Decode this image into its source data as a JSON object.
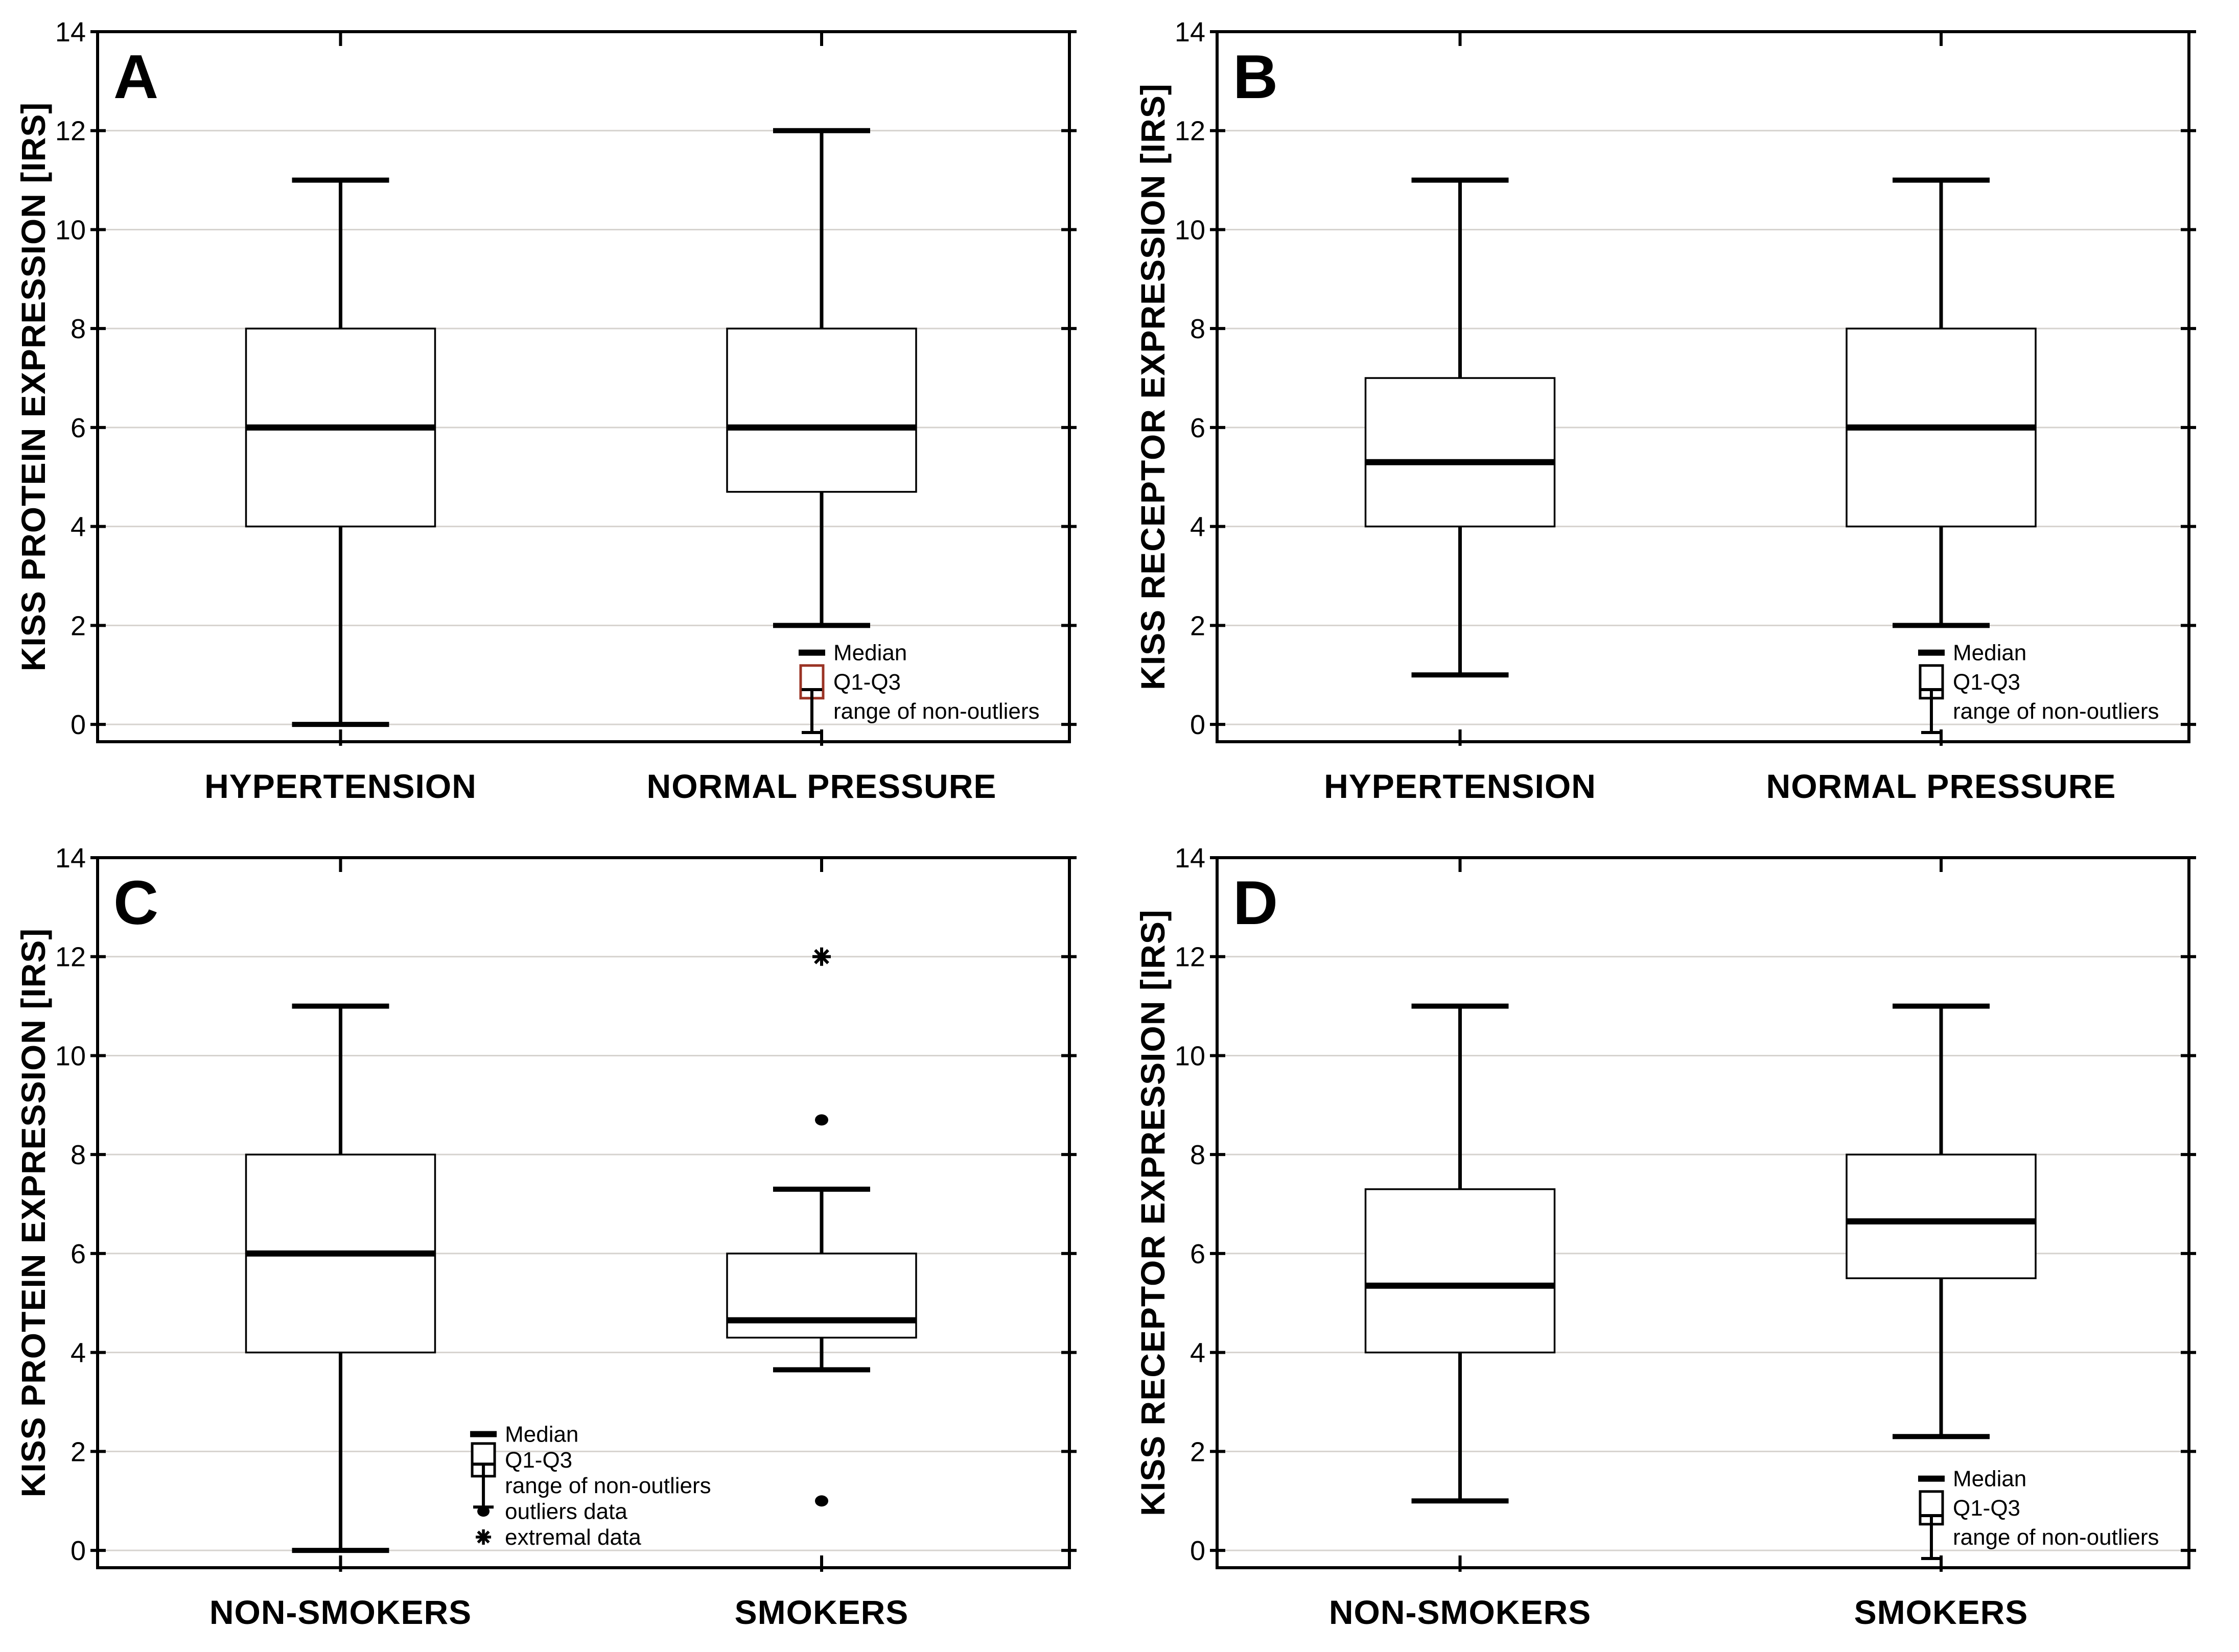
{
  "colors": {
    "axis": "#000000",
    "grid": "#d6d3cf",
    "background": "#ffffff",
    "text": "#000000",
    "panel_a_legend_box": "#9a3324"
  },
  "chart_data": [
    {
      "panel_label": "A",
      "type": "box",
      "ylabel": "KISS PROTEIN EXPRESSION [IRS]",
      "xlabel": "",
      "ylim": [
        -0.35,
        14
      ],
      "yticks": [
        0,
        2,
        4,
        6,
        8,
        10,
        12,
        14
      ],
      "grid": "horizontal",
      "legend_position": "bottom-right",
      "categories": [
        "HYPERTENSION",
        "NORMAL PRESSURE"
      ],
      "series": [
        {
          "category": "HYPERTENSION",
          "whisker_low": 0,
          "q1": 4,
          "median": 6,
          "q3": 8,
          "whisker_high": 11,
          "outliers": [],
          "extremes": []
        },
        {
          "category": "NORMAL PRESSURE",
          "whisker_low": 2,
          "q1": 4.7,
          "median": 6,
          "q3": 8,
          "whisker_high": 12,
          "outliers": [],
          "extremes": []
        }
      ],
      "legend": {
        "box_icon_color": "#9a3324",
        "items": [
          {
            "icon": "median-dash",
            "label": "Median"
          },
          {
            "icon": "q1-q3-box",
            "label": "Q1-Q3"
          },
          {
            "icon": "whisker-range",
            "label": "range of non-outliers"
          }
        ]
      }
    },
    {
      "panel_label": "B",
      "type": "box",
      "ylabel": "KISS RECEPTOR EXPRESSION [IRS]",
      "xlabel": "",
      "ylim": [
        -0.35,
        14
      ],
      "yticks": [
        0,
        2,
        4,
        6,
        8,
        10,
        12,
        14
      ],
      "grid": "horizontal",
      "legend_position": "bottom-right",
      "categories": [
        "HYPERTENSION",
        "NORMAL PRESSURE"
      ],
      "series": [
        {
          "category": "HYPERTENSION",
          "whisker_low": 1,
          "q1": 4,
          "median": 5.3,
          "q3": 7,
          "whisker_high": 11,
          "outliers": [],
          "extremes": []
        },
        {
          "category": "NORMAL PRESSURE",
          "whisker_low": 2,
          "q1": 4,
          "median": 6,
          "q3": 8,
          "whisker_high": 11,
          "outliers": [],
          "extremes": []
        }
      ],
      "legend": {
        "box_icon_color": "#000000",
        "items": [
          {
            "icon": "median-dash",
            "label": "Median"
          },
          {
            "icon": "q1-q3-box",
            "label": "Q1-Q3"
          },
          {
            "icon": "whisker-range",
            "label": "range of non-outliers"
          }
        ]
      }
    },
    {
      "panel_label": "C",
      "type": "box",
      "ylabel": "KISS PROTEIN EXPRESSION [IRS]",
      "xlabel": "",
      "ylim": [
        -0.35,
        14
      ],
      "yticks": [
        0,
        2,
        4,
        6,
        8,
        10,
        12,
        14
      ],
      "grid": "horizontal",
      "legend_position": "center-left",
      "categories": [
        "NON-SMOKERS",
        "SMOKERS"
      ],
      "series": [
        {
          "category": "NON-SMOKERS",
          "whisker_low": 0,
          "q1": 4,
          "median": 6,
          "q3": 8,
          "whisker_high": 11,
          "outliers": [],
          "extremes": []
        },
        {
          "category": "SMOKERS",
          "whisker_low": 3.65,
          "q1": 4.3,
          "median": 4.65,
          "q3": 6,
          "whisker_high": 7.3,
          "outliers": [
            8.7,
            1
          ],
          "extremes": [
            12
          ]
        }
      ],
      "legend": {
        "box_icon_color": "#000000",
        "items": [
          {
            "icon": "median-dash",
            "label": "Median"
          },
          {
            "icon": "q1-q3-box",
            "label": "Q1-Q3"
          },
          {
            "icon": "whisker-range",
            "label": "range of non-outliers"
          },
          {
            "icon": "outlier-dot",
            "label": "outliers data"
          },
          {
            "icon": "extreme-asterisk",
            "label": "extremal data"
          }
        ]
      }
    },
    {
      "panel_label": "D",
      "type": "box",
      "ylabel": "KISS RECEPTOR EXPRESSION [IRS]",
      "xlabel": "",
      "ylim": [
        -0.35,
        14
      ],
      "yticks": [
        0,
        2,
        4,
        6,
        8,
        10,
        12,
        14
      ],
      "grid": "horizontal",
      "legend_position": "bottom-right",
      "categories": [
        "NON-SMOKERS",
        "SMOKERS"
      ],
      "series": [
        {
          "category": "NON-SMOKERS",
          "whisker_low": 1,
          "q1": 4,
          "median": 5.35,
          "q3": 7.3,
          "whisker_high": 11,
          "outliers": [],
          "extremes": []
        },
        {
          "category": "SMOKERS",
          "whisker_low": 2.3,
          "q1": 5.5,
          "median": 6.65,
          "q3": 8,
          "whisker_high": 11,
          "outliers": [],
          "extremes": []
        }
      ],
      "legend": {
        "box_icon_color": "#000000",
        "items": [
          {
            "icon": "median-dash",
            "label": "Median"
          },
          {
            "icon": "q1-q3-box",
            "label": "Q1-Q3"
          },
          {
            "icon": "whisker-range",
            "label": "range of non-outliers"
          }
        ]
      }
    }
  ]
}
